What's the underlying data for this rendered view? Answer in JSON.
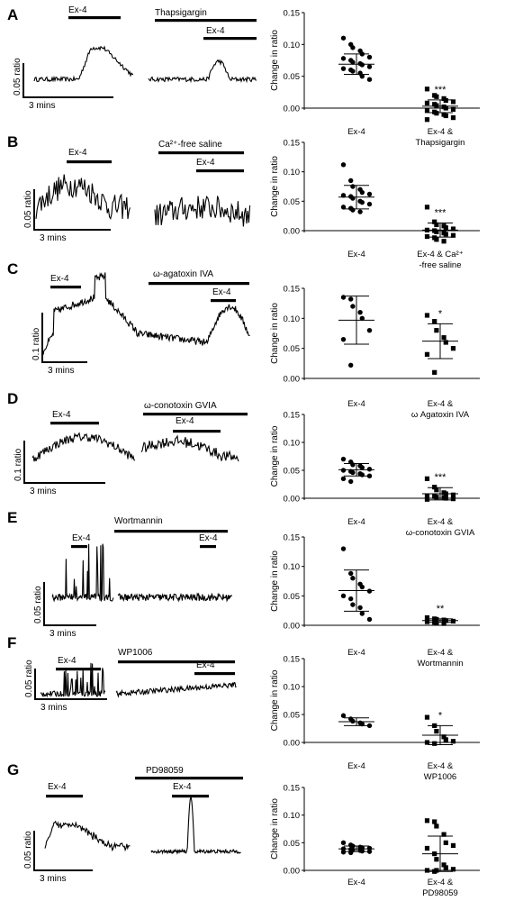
{
  "panels": [
    {
      "letter": "A",
      "trace": {
        "stim_labels": [
          "Ex-4",
          "Thapsigargin",
          "Ex-4"
        ],
        "scalebar_y": "0.05 ratio",
        "scalebar_x": "3 mins"
      },
      "chart_data": {
        "type": "scatter",
        "ylabel": "Change in ratio",
        "ylim": [
          0,
          0.15
        ],
        "yticks": [
          "0.15",
          "0.10",
          "0.05",
          "0.00"
        ],
        "categories": [
          [
            "Ex-4"
          ],
          [
            "Ex-4 &",
            "Thapsigargin"
          ]
        ],
        "mean": [
          0.069,
          0.003
        ],
        "sd": [
          0.016,
          0.01
        ],
        "significance": [
          "",
          "***"
        ],
        "points": [
          [
            0.11,
            0.1,
            0.095,
            0.09,
            0.085,
            0.08,
            0.078,
            0.075,
            0.072,
            0.07,
            0.068,
            0.065,
            0.062,
            0.06,
            0.058,
            0.055,
            0.05,
            0.045
          ],
          [
            0.03,
            0.02,
            0.018,
            0.015,
            0.012,
            0.01,
            0.008,
            0.006,
            0.004,
            0.002,
            0.0,
            -0.002,
            -0.004,
            -0.006,
            -0.008,
            -0.01,
            -0.012,
            -0.015,
            -0.018
          ]
        ]
      }
    },
    {
      "letter": "B",
      "trace": {
        "stim_labels": [
          "Ex-4",
          "Ca²⁺-free saline",
          "Ex-4"
        ],
        "scalebar_y": "0.05 ratio",
        "scalebar_x": "3 mins"
      },
      "chart_data": {
        "type": "scatter",
        "ylabel": "Change in ratio",
        "ylim": [
          0,
          0.15
        ],
        "yticks": [
          "0.15",
          "0.10",
          "0.05",
          "0.00"
        ],
        "categories": [
          [
            "Ex-4"
          ],
          [
            "Ex-4 & Ca²⁺",
            "-free saline"
          ]
        ],
        "mean": [
          0.057,
          0.001
        ],
        "sd": [
          0.02,
          0.012
        ],
        "significance": [
          "",
          "***"
        ],
        "points": [
          [
            0.112,
            0.085,
            0.075,
            0.07,
            0.065,
            0.062,
            0.06,
            0.058,
            0.055,
            0.05,
            0.048,
            0.045,
            0.04,
            0.038,
            0.035,
            0.032
          ],
          [
            0.04,
            0.015,
            0.01,
            0.008,
            0.005,
            0.003,
            0.001,
            0.0,
            -0.002,
            -0.004,
            -0.006,
            -0.008,
            -0.01,
            -0.012,
            -0.015,
            -0.018
          ]
        ]
      }
    },
    {
      "letter": "C",
      "trace": {
        "stim_labels": [
          "Ex-4",
          "ω-agatoxin IVA",
          "Ex-4"
        ],
        "scalebar_y": "0.1 ratio",
        "scalebar_x": "3 mins"
      },
      "chart_data": {
        "type": "scatter",
        "ylabel": "Change in ratio",
        "ylim": [
          0,
          0.15
        ],
        "yticks": [
          "0.15",
          "0.10",
          "0.05",
          "0.00"
        ],
        "categories": [
          [
            "Ex-4"
          ],
          [
            "Ex-4 &",
            "ω Agatoxin IVA"
          ]
        ],
        "mean": [
          0.097,
          0.062
        ],
        "sd": [
          0.04,
          0.029
        ],
        "significance": [
          "",
          "*"
        ],
        "points": [
          [
            0.135,
            0.132,
            0.12,
            0.11,
            0.1,
            0.08,
            0.065,
            0.022
          ],
          [
            0.105,
            0.095,
            0.08,
            0.068,
            0.06,
            0.05,
            0.04,
            0.01
          ]
        ]
      }
    },
    {
      "letter": "D",
      "trace": {
        "stim_labels": [
          "Ex-4",
          "ω-conotoxin GVIA",
          "Ex-4"
        ],
        "scalebar_y": "0.1 ratio",
        "scalebar_x": "3 mins"
      },
      "chart_data": {
        "type": "scatter",
        "ylabel": "Change in ratio",
        "ylim": [
          0,
          0.15
        ],
        "yticks": [
          "0.15",
          "0.10",
          "0.05",
          "0.00"
        ],
        "categories": [
          [
            "Ex-4"
          ],
          [
            "Ex-4 &",
            "ω-conotoxin GVIA"
          ]
        ],
        "mean": [
          0.051,
          0.008
        ],
        "sd": [
          0.011,
          0.011
        ],
        "significance": [
          "",
          "***"
        ],
        "points": [
          [
            0.07,
            0.065,
            0.06,
            0.058,
            0.055,
            0.052,
            0.05,
            0.048,
            0.046,
            0.044,
            0.042,
            0.04,
            0.035,
            0.03
          ],
          [
            0.035,
            0.02,
            0.015,
            0.01,
            0.008,
            0.006,
            0.004,
            0.003,
            0.002,
            0.001,
            0.0,
            -0.001,
            -0.002
          ]
        ]
      }
    },
    {
      "letter": "E",
      "trace": {
        "stim_labels": [
          "Ex-4",
          "Wortmannin",
          "Ex-4"
        ],
        "scalebar_y": "0.05 ratio",
        "scalebar_x": "3 mins"
      },
      "chart_data": {
        "type": "scatter",
        "ylabel": "Change in ratio",
        "ylim": [
          0,
          0.15
        ],
        "yticks": [
          "0.15",
          "0.10",
          "0.05",
          "0.00"
        ],
        "categories": [
          [
            "Ex-4"
          ],
          [
            "Ex-4 &",
            "Wortmannin"
          ]
        ],
        "mean": [
          0.059,
          0.008
        ],
        "sd": [
          0.035,
          0.003
        ],
        "significance": [
          "",
          "**"
        ],
        "points": [
          [
            0.13,
            0.088,
            0.08,
            0.07,
            0.065,
            0.058,
            0.05,
            0.045,
            0.035,
            0.03,
            0.02,
            0.01
          ],
          [
            0.013,
            0.011,
            0.01,
            0.009,
            0.008,
            0.007,
            0.006,
            0.005,
            0.004,
            0.003
          ]
        ]
      }
    },
    {
      "letter": "F",
      "trace": {
        "stim_labels": [
          "Ex-4",
          "WP1006",
          "Ex-4"
        ],
        "scalebar_y": "0.05 ratio",
        "scalebar_x": "3 mins"
      },
      "chart_data": {
        "type": "scatter",
        "ylabel": "Change in ratio",
        "ylim": [
          0,
          0.15
        ],
        "yticks": [
          "0.15",
          "0.10",
          "0.05",
          "0.00"
        ],
        "categories": [
          [
            "Ex-4"
          ],
          [
            "Ex-4 &",
            "WP1006"
          ]
        ],
        "mean": [
          0.037,
          0.013
        ],
        "sd": [
          0.007,
          0.017
        ],
        "significance": [
          "",
          "*"
        ],
        "points": [
          [
            0.048,
            0.042,
            0.038,
            0.035,
            0.033,
            0.03
          ],
          [
            0.045,
            0.03,
            0.02,
            0.01,
            0.005,
            0.002,
            0.0,
            -0.002
          ]
        ]
      }
    },
    {
      "letter": "G",
      "trace": {
        "stim_labels": [
          "Ex-4",
          "PD98059",
          "Ex-4"
        ],
        "scalebar_y": "0.05 ratio",
        "scalebar_x": "3 mins"
      },
      "chart_data": {
        "type": "scatter",
        "ylabel": "Change in ratio",
        "ylim": [
          0,
          0.15
        ],
        "yticks": [
          "0.15",
          "0.10",
          "0.05",
          "0.00"
        ],
        "categories": [
          [
            "Ex-4"
          ],
          [
            "Ex-4 &",
            "PD98059"
          ]
        ],
        "mean": [
          0.039,
          0.03
        ],
        "sd": [
          0.005,
          0.032
        ],
        "significance": [
          "",
          ""
        ],
        "points": [
          [
            0.05,
            0.046,
            0.044,
            0.042,
            0.041,
            0.04,
            0.039,
            0.038,
            0.037,
            0.036,
            0.035,
            0.034,
            0.033,
            0.032
          ],
          [
            0.09,
            0.088,
            0.08,
            0.065,
            0.05,
            0.045,
            0.04,
            0.03,
            0.02,
            0.01,
            0.005,
            0.002,
            0.0,
            -0.002,
            0.0
          ]
        ]
      }
    }
  ]
}
